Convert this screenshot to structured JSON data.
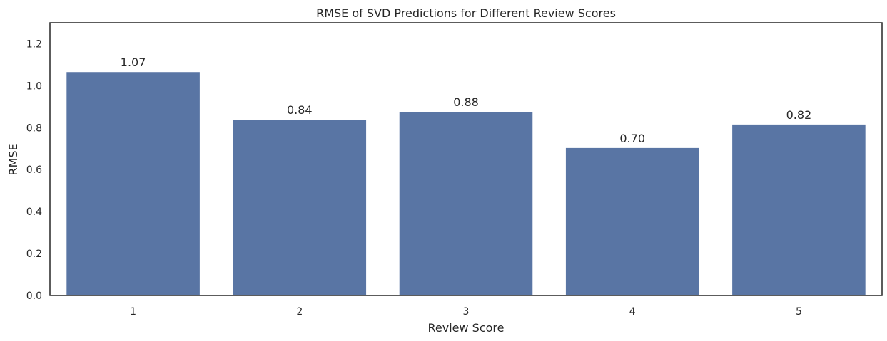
{
  "chart_data": {
    "type": "bar",
    "title": "RMSE of SVD Predictions for Different Review Scores",
    "xlabel": "Review Score",
    "ylabel": "RMSE",
    "categories": [
      "1",
      "2",
      "3",
      "4",
      "5"
    ],
    "values": [
      1.065,
      0.838,
      0.875,
      0.703,
      0.815
    ],
    "data_labels": [
      "1.07",
      "0.84",
      "0.88",
      "0.70",
      "0.82"
    ],
    "ylim": [
      0,
      1.3
    ],
    "yticks": [
      0.0,
      0.2,
      0.4,
      0.6,
      0.8,
      1.0,
      1.2
    ],
    "ytick_labels": [
      "0.0",
      "0.2",
      "0.4",
      "0.6",
      "0.8",
      "1.0",
      "1.2"
    ],
    "grid": false,
    "colors": {
      "bar": "#5975a4",
      "axes": "#262626",
      "text": "#262626"
    }
  }
}
